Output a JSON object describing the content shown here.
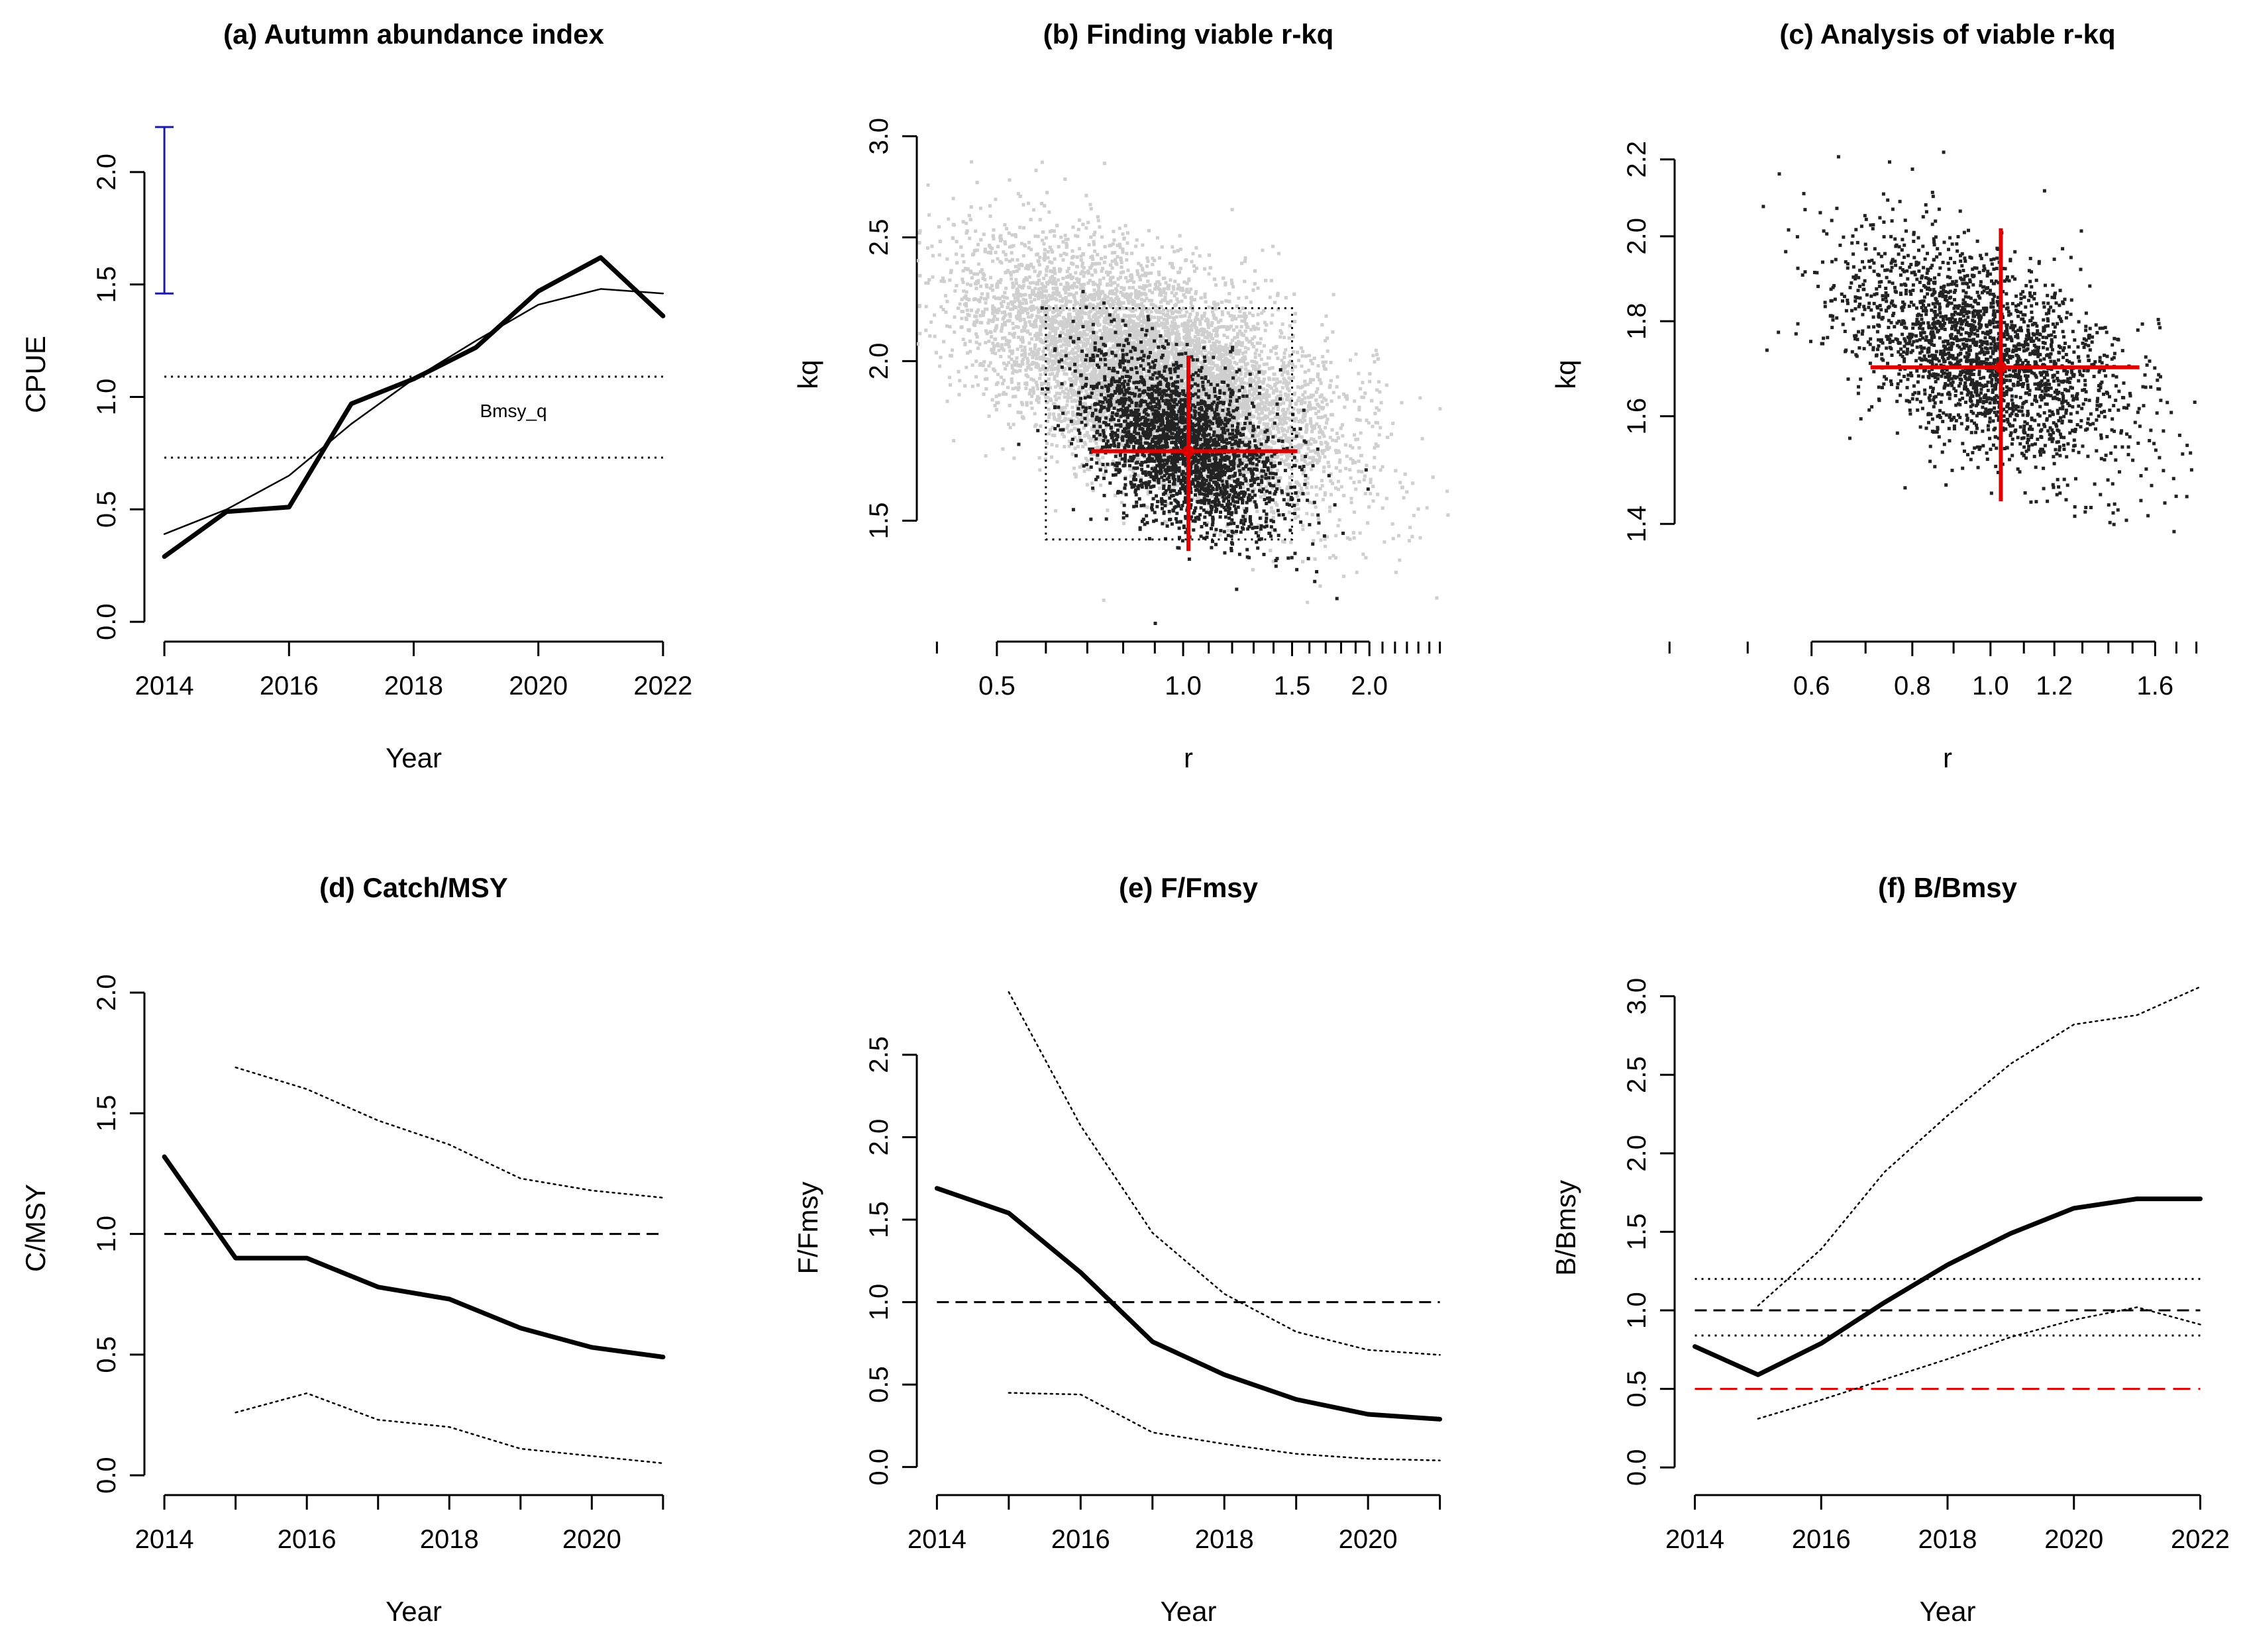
{
  "colors": {
    "ink": "#000000",
    "red": "#e00000",
    "blue": "#1a1aa8",
    "cloud_light": "#cfcfcf",
    "cloud_dark": "#222222"
  },
  "chart_data": [
    {
      "id": "a",
      "type": "line",
      "title": "(a) Autumn abundance index",
      "xlabel": "Year",
      "ylabel": "CPUE",
      "xlim": [
        2014,
        2022
      ],
      "ylim": [
        0,
        2.2
      ],
      "xticks": [
        2014,
        2016,
        2018,
        2020,
        2022
      ],
      "yticks": [
        0.0,
        0.5,
        1.0,
        1.5,
        2.0
      ],
      "series": [
        {
          "name": "observed CPUE",
          "style": "thick",
          "x": [
            2014,
            2015,
            2016,
            2017,
            2018,
            2019,
            2020,
            2021,
            2022
          ],
          "values": [
            0.29,
            0.49,
            0.51,
            0.97,
            1.08,
            1.22,
            1.47,
            1.62,
            1.36
          ]
        },
        {
          "name": "predicted CPUE",
          "style": "thin",
          "x": [
            2014,
            2015,
            2016,
            2017,
            2018,
            2019,
            2020,
            2021,
            2022
          ],
          "values": [
            0.39,
            0.5,
            0.65,
            0.88,
            1.08,
            1.25,
            1.41,
            1.48,
            1.46
          ]
        }
      ],
      "hlines": [
        {
          "y": 1.09,
          "style": "dotted"
        },
        {
          "y": 0.73,
          "style": "dotted"
        }
      ],
      "annotation": {
        "text": "Bmsy_q",
        "x": 2019.6,
        "y": 0.91
      },
      "error_bar": {
        "x": 2014,
        "ymin": 1.46,
        "ymax": 2.2
      }
    },
    {
      "id": "b",
      "type": "scatter",
      "title": "(b) Finding viable r-kq",
      "xlabel": "r",
      "ylabel": "kq",
      "xscale": "log",
      "yscale": "log",
      "xlim": [
        0.4,
        2.6
      ],
      "ylim": [
        1.25,
        3.05
      ],
      "xticks": [
        0.5,
        1.0,
        1.5,
        2.0
      ],
      "yticks": [
        1.5,
        2.0,
        2.5,
        3.0
      ],
      "clouds": [
        {
          "name": "all tested r-kq pairs",
          "color": "cloud_light",
          "center": [
            0.9,
            1.95
          ],
          "spread": [
            0.33,
            0.11
          ],
          "corr": -0.55,
          "count": 11000
        },
        {
          "name": "viable r-kq pairs",
          "color": "cloud_dark",
          "center": [
            1.0,
            1.72
          ],
          "spread": [
            0.18,
            0.08
          ],
          "corr": -0.45,
          "count": 2600
        }
      ],
      "search_box": {
        "r": [
          0.6,
          1.5
        ],
        "kq": [
          1.45,
          2.2
        ]
      },
      "estimate": {
        "r": 1.02,
        "kq": 1.7,
        "r_range": [
          0.71,
          1.53
        ],
        "kq_range": [
          1.42,
          2.02
        ]
      }
    },
    {
      "id": "c",
      "type": "scatter",
      "title": "(c) Analysis of viable r-kq",
      "xlabel": "r",
      "ylabel": "kq",
      "xscale": "log",
      "yscale": "log",
      "xlim": [
        0.43,
        1.82
      ],
      "ylim": [
        1.24,
        2.29
      ],
      "xticks": [
        0.6,
        0.8,
        1.0,
        1.2,
        1.6
      ],
      "yticks": [
        1.4,
        1.6,
        1.8,
        2.0,
        2.2
      ],
      "clouds": [
        {
          "name": "viable r-kq pairs",
          "color": "cloud_dark",
          "center": [
            0.98,
            1.73
          ],
          "spread": [
            0.2,
            0.07
          ],
          "corr": -0.5,
          "count": 2300
        }
      ],
      "estimate": {
        "r": 1.03,
        "kq": 1.7,
        "r_range": [
          0.71,
          1.53
        ],
        "kq_range": [
          1.44,
          2.02
        ]
      }
    },
    {
      "id": "d",
      "type": "line",
      "title": "(d) Catch/MSY",
      "xlabel": "Year",
      "ylabel": "C/MSY",
      "xlim": [
        2014,
        2021
      ],
      "ylim": [
        0,
        2.05
      ],
      "xticks": [
        2014,
        2016,
        2018,
        2020
      ],
      "xticks_minor": [
        2015,
        2017,
        2019,
        2021
      ],
      "yticks": [
        0.0,
        0.5,
        1.0,
        1.5,
        2.0
      ],
      "series": [
        {
          "name": "C/MSY",
          "style": "thick",
          "x": [
            2014,
            2015,
            2016,
            2017,
            2018,
            2019,
            2020,
            2021
          ],
          "values": [
            1.32,
            0.9,
            0.9,
            0.78,
            0.73,
            0.61,
            0.53,
            0.49
          ]
        },
        {
          "name": "upper CI",
          "style": "dotted",
          "x": [
            2015,
            2016,
            2017,
            2018,
            2019,
            2020,
            2021
          ],
          "values": [
            1.69,
            1.6,
            1.47,
            1.37,
            1.23,
            1.18,
            1.15
          ]
        },
        {
          "name": "lower CI",
          "style": "dotted",
          "x": [
            2015,
            2016,
            2017,
            2018,
            2019,
            2020,
            2021
          ],
          "values": [
            0.26,
            0.34,
            0.23,
            0.2,
            0.11,
            0.08,
            0.05
          ]
        }
      ],
      "hlines": [
        {
          "y": 1.0,
          "style": "dashed"
        }
      ]
    },
    {
      "id": "e",
      "type": "line",
      "title": "(e) F/Fmsy",
      "xlabel": "Year",
      "ylabel": "F/Fmsy",
      "xlim": [
        2014,
        2021
      ],
      "ylim": [
        -0.05,
        2.95
      ],
      "xticks": [
        2014,
        2016,
        2018,
        2020
      ],
      "xticks_minor": [
        2015,
        2017,
        2019,
        2021
      ],
      "yticks": [
        0.0,
        0.5,
        1.0,
        1.5,
        2.0,
        2.5
      ],
      "series": [
        {
          "name": "F/Fmsy",
          "style": "thick",
          "x": [
            2014,
            2015,
            2016,
            2017,
            2018,
            2019,
            2020,
            2021
          ],
          "values": [
            1.69,
            1.54,
            1.18,
            0.76,
            0.56,
            0.41,
            0.32,
            0.29
          ]
        },
        {
          "name": "upper CI",
          "style": "dotted",
          "x": [
            2015,
            2016,
            2017,
            2018,
            2019,
            2020,
            2021
          ],
          "values": [
            2.88,
            2.07,
            1.42,
            1.05,
            0.82,
            0.71,
            0.68
          ]
        },
        {
          "name": "lower CI",
          "style": "dotted",
          "x": [
            2015,
            2016,
            2017,
            2018,
            2019,
            2020,
            2021
          ],
          "values": [
            0.45,
            0.44,
            0.21,
            0.14,
            0.08,
            0.05,
            0.04
          ]
        }
      ],
      "hlines": [
        {
          "y": 1.0,
          "style": "dashed"
        }
      ]
    },
    {
      "id": "f",
      "type": "line",
      "title": "(f) B/Bmsy",
      "xlabel": "Year",
      "ylabel": "B/Bmsy",
      "xlim": [
        2014,
        2022
      ],
      "ylim": [
        -0.05,
        3.1
      ],
      "xticks": [
        2014,
        2016,
        2018,
        2020,
        2022
      ],
      "yticks": [
        0.0,
        0.5,
        1.0,
        1.5,
        2.0,
        2.5,
        3.0
      ],
      "series": [
        {
          "name": "B/Bmsy",
          "style": "thick",
          "x": [
            2014,
            2015,
            2016,
            2017,
            2018,
            2019,
            2020,
            2021,
            2022
          ],
          "values": [
            0.77,
            0.59,
            0.79,
            1.05,
            1.29,
            1.49,
            1.65,
            1.71,
            1.71
          ]
        },
        {
          "name": "upper CI",
          "style": "dotted",
          "x": [
            2015,
            2016,
            2017,
            2018,
            2019,
            2020,
            2021,
            2022
          ],
          "values": [
            1.03,
            1.39,
            1.88,
            2.24,
            2.57,
            2.82,
            2.88,
            3.06
          ]
        },
        {
          "name": "lower CI",
          "style": "dotted",
          "x": [
            2015,
            2016,
            2017,
            2018,
            2019,
            2020,
            2021,
            2022
          ],
          "values": [
            0.31,
            0.43,
            0.56,
            0.69,
            0.83,
            0.94,
            1.02,
            0.91
          ]
        }
      ],
      "hlines": [
        {
          "y": 1.2,
          "style": "dotted"
        },
        {
          "y": 1.0,
          "style": "dashed"
        },
        {
          "y": 0.84,
          "style": "dotted"
        },
        {
          "y": 0.5,
          "style": "dashed-red"
        }
      ]
    }
  ]
}
